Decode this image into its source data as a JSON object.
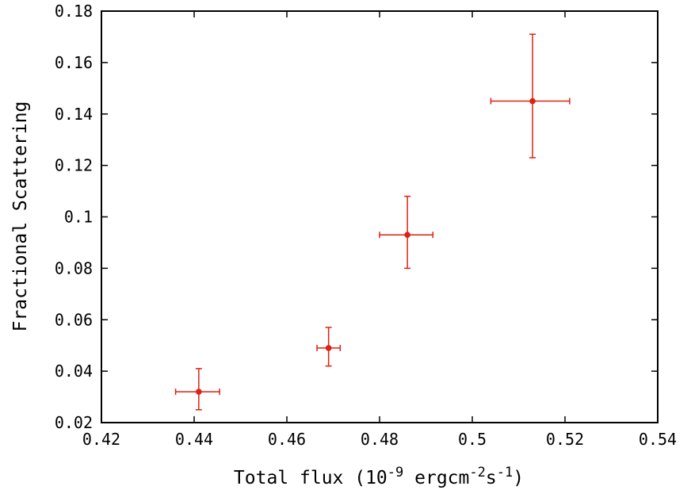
{
  "chart_data": {
    "type": "scatter",
    "xlabel": {
      "prefix": "Total flux (10",
      "exp1": "-9",
      "mid1": " ergcm",
      "exp2": "-2",
      "mid2": "s",
      "exp3": "-1",
      "suffix": ")"
    },
    "ylabel": "Fractional Scattering",
    "xlim": [
      0.42,
      0.54
    ],
    "ylim": [
      0.02,
      0.18
    ],
    "x_ticks": [
      {
        "value": 0.42,
        "label": "0.42"
      },
      {
        "value": 0.44,
        "label": "0.44"
      },
      {
        "value": 0.46,
        "label": "0.46"
      },
      {
        "value": 0.48,
        "label": "0.48"
      },
      {
        "value": 0.5,
        "label": "0.5"
      },
      {
        "value": 0.52,
        "label": "0.52"
      },
      {
        "value": 0.54,
        "label": "0.54"
      }
    ],
    "y_ticks": [
      {
        "value": 0.02,
        "label": "0.02"
      },
      {
        "value": 0.04,
        "label": "0.04"
      },
      {
        "value": 0.06,
        "label": "0.06"
      },
      {
        "value": 0.08,
        "label": "0.08"
      },
      {
        "value": 0.1,
        "label": "0.1"
      },
      {
        "value": 0.12,
        "label": "0.12"
      },
      {
        "value": 0.14,
        "label": "0.14"
      },
      {
        "value": 0.16,
        "label": "0.16"
      },
      {
        "value": 0.18,
        "label": "0.18"
      }
    ],
    "grid": false,
    "color": "#dd2211",
    "points": [
      {
        "x": 0.441,
        "y": 0.032,
        "x_err": [
          0.436,
          0.4455
        ],
        "y_err": [
          0.025,
          0.041
        ]
      },
      {
        "x": 0.469,
        "y": 0.049,
        "x_err": [
          0.4665,
          0.4715
        ],
        "y_err": [
          0.042,
          0.057
        ]
      },
      {
        "x": 0.486,
        "y": 0.093,
        "x_err": [
          0.48,
          0.4915
        ],
        "y_err": [
          0.08,
          0.108
        ]
      },
      {
        "x": 0.513,
        "y": 0.145,
        "x_err": [
          0.504,
          0.521
        ],
        "y_err": [
          0.123,
          0.171
        ]
      }
    ]
  }
}
